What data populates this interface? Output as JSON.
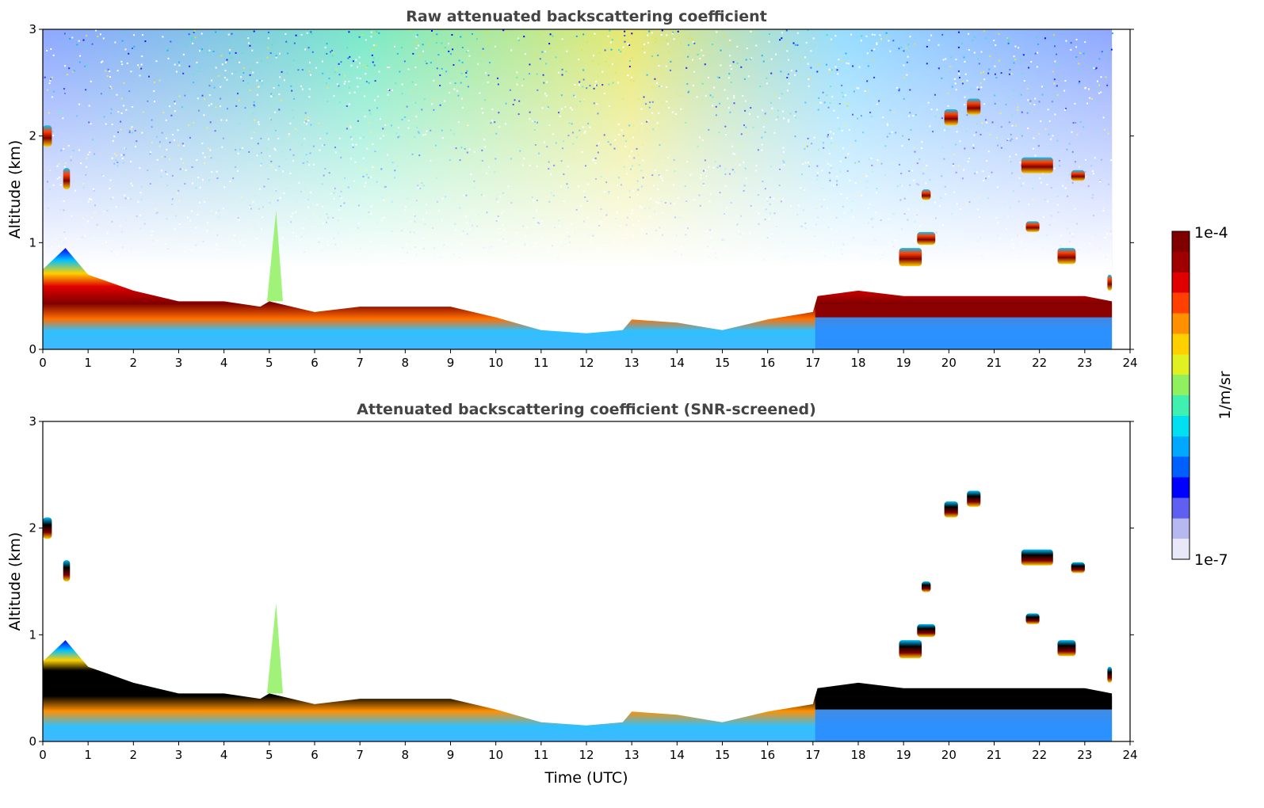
{
  "chart_data": [
    {
      "type": "heatmap",
      "title": "Raw attenuated backscattering coefficient",
      "xlabel": "",
      "ylabel": "Altitude (km)",
      "xlim": [
        0,
        24
      ],
      "ylim": [
        0,
        3
      ],
      "x_ticks": [
        0,
        1,
        2,
        3,
        4,
        5,
        6,
        7,
        8,
        9,
        10,
        11,
        12,
        13,
        14,
        15,
        16,
        17,
        18,
        19,
        20,
        21,
        22,
        23,
        24
      ],
      "y_ticks": [
        0,
        1,
        2,
        3
      ],
      "data_end_time": 23.6,
      "screened": false,
      "boundary_layer_top_km": {
        "time": [
          0,
          0.5,
          1,
          2,
          3,
          4,
          4.8,
          5,
          6,
          7,
          8,
          9,
          10,
          11,
          12,
          12.8,
          13,
          14,
          15,
          16,
          17,
          17.1,
          18,
          19,
          20,
          21,
          22,
          23,
          23.6
        ],
        "height": [
          0.75,
          0.95,
          0.7,
          0.55,
          0.45,
          0.45,
          0.4,
          0.45,
          0.35,
          0.4,
          0.4,
          0.4,
          0.3,
          0.18,
          0.15,
          0.18,
          0.28,
          0.25,
          0.18,
          0.28,
          0.35,
          0.5,
          0.55,
          0.5,
          0.5,
          0.5,
          0.5,
          0.5,
          0.45
        ]
      },
      "cloud_layers": [
        {
          "t0": 0.0,
          "t1": 0.2,
          "z0": 1.9,
          "z1": 2.1
        },
        {
          "t0": 0.45,
          "t1": 0.6,
          "z0": 1.5,
          "z1": 1.7
        },
        {
          "t0": 19.4,
          "t1": 19.6,
          "z0": 1.4,
          "z1": 1.5
        },
        {
          "t0": 19.9,
          "t1": 20.2,
          "z0": 2.1,
          "z1": 2.25
        },
        {
          "t0": 20.4,
          "t1": 20.7,
          "z0": 2.2,
          "z1": 2.35
        },
        {
          "t0": 21.6,
          "t1": 22.3,
          "z0": 1.65,
          "z1": 1.8
        },
        {
          "t0": 22.7,
          "t1": 23.0,
          "z0": 1.58,
          "z1": 1.68
        },
        {
          "t0": 18.9,
          "t1": 19.4,
          "z0": 0.78,
          "z1": 0.95
        },
        {
          "t0": 19.3,
          "t1": 19.7,
          "z0": 0.98,
          "z1": 1.1
        },
        {
          "t0": 21.7,
          "t1": 22.0,
          "z0": 1.1,
          "z1": 1.2
        },
        {
          "t0": 22.4,
          "t1": 22.8,
          "z0": 0.8,
          "z1": 0.95
        },
        {
          "t0": 23.5,
          "t1": 23.6,
          "z0": 0.55,
          "z1": 0.7
        }
      ]
    },
    {
      "type": "heatmap",
      "title": "Attenuated backscattering coefficient (SNR-screened)",
      "xlabel": "Time (UTC)",
      "ylabel": "Altitude (km)",
      "xlim": [
        0,
        24
      ],
      "ylim": [
        0,
        3
      ],
      "x_ticks": [
        0,
        1,
        2,
        3,
        4,
        5,
        6,
        7,
        8,
        9,
        10,
        11,
        12,
        13,
        14,
        15,
        16,
        17,
        18,
        19,
        20,
        21,
        22,
        23,
        24
      ],
      "y_ticks": [
        0,
        1,
        2,
        3
      ],
      "data_end_time": 23.6,
      "screened": true
    }
  ],
  "colorbar": {
    "max_label": "1e-4",
    "min_label": "1e-7",
    "unit_label": "1/m/sr",
    "colormap": [
      "#e8e8f8",
      "#b8b8f0",
      "#6060f0",
      "#0000ff",
      "#0060ff",
      "#00a8ff",
      "#00e0f0",
      "#40f0b0",
      "#90f060",
      "#e0f020",
      "#ffd000",
      "#ff9000",
      "#ff4000",
      "#e00000",
      "#a00000",
      "#800000"
    ]
  },
  "colors": {
    "background": "#ffffff",
    "title_color": "#444444",
    "high_return": "#8b0000",
    "screened_core": "#000000"
  }
}
